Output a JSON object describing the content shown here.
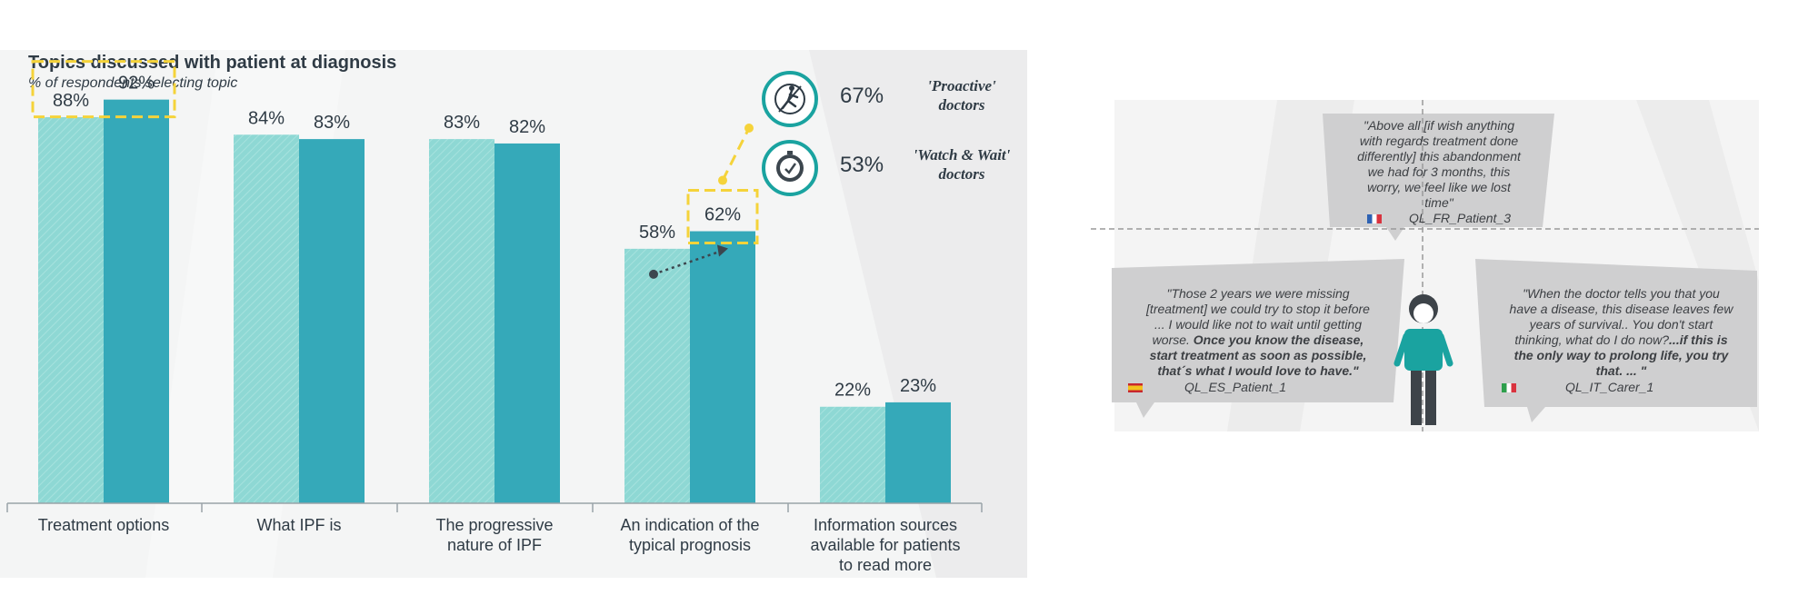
{
  "chart_title": "Topics discussed with patient at diagnosis",
  "chart_subtitle": "% of respondents selecting topic",
  "chart_data": {
    "type": "bar",
    "title": "Topics discussed with patient at diagnosis",
    "subtitle": "% of respondents selecting topic",
    "categories": [
      [
        "Treatment options"
      ],
      [
        "What IPF is"
      ],
      [
        "The progressive",
        "nature of IPF"
      ],
      [
        "An indication of the",
        "typical prognosis"
      ],
      [
        "Information sources",
        "available for patients",
        "to read more"
      ]
    ],
    "series": [
      {
        "color": "#8ed8d4",
        "values": [
          88,
          84,
          83,
          58,
          22
        ]
      },
      {
        "color": "#35a9b9",
        "values": [
          92,
          83,
          82,
          62,
          23
        ]
      }
    ],
    "value_labels": [
      [
        "88%",
        "92%"
      ],
      [
        "84%",
        "83%"
      ],
      [
        "83%",
        "82%"
      ],
      [
        "58%",
        "62%"
      ],
      [
        "22%",
        "23%"
      ]
    ],
    "ylim": [
      0,
      100
    ],
    "grid": false,
    "highlighted": [
      0,
      3
    ]
  },
  "doctor_types": [
    {
      "icon": "doctor-cycling-icon",
      "pct": "67%",
      "label_lines": [
        "'Proactive'",
        "doctors"
      ]
    },
    {
      "icon": "clock-icon",
      "pct": "53%",
      "label_lines": [
        "'Watch & Wait'",
        "doctors"
      ]
    }
  ],
  "quotes": {
    "top": {
      "lines": [
        "\"Above all [if wish anything",
        "with regards treatment done",
        "differently] this abandonment",
        "we had for 3 months, this",
        "worry, we feel like we lost",
        "time\""
      ],
      "source": "QL_FR_Patient_3"
    },
    "left": {
      "lines": [
        {
          "text": "\"Those 2 years we were missing",
          "bold": false
        },
        {
          "text": "[treatment] we could try to stop it before",
          "bold": false
        },
        {
          "text": "... I would like not to wait until getting",
          "bold": false
        },
        {
          "text": "worse. Once you know the disease,",
          "bold_from": 6
        },
        {
          "text": "start treatment as soon as possible,",
          "bold": true
        },
        {
          "text": "that´s what I would love to have.\"",
          "bold": true
        }
      ],
      "source": "QL_ES_Patient_1"
    },
    "right": {
      "lines": [
        {
          "text": "\"When the doctor tells you that you",
          "bold": false
        },
        {
          "text": "have a disease, this disease leaves few",
          "bold": false
        },
        {
          "text": "years of survival.. You don't start",
          "bold": false
        },
        {
          "text": "thinking, what do I do now?...if this is",
          "bold_from": 27
        },
        {
          "text": "the only way to prolong life, you try",
          "bold": true
        },
        {
          "text": "that. ... \"",
          "bold": true
        }
      ],
      "source": "QL_IT_Carer_1"
    }
  },
  "colors": {
    "teal_light": "#8ed8d4",
    "teal_dark": "#35a9b9",
    "highlight": "#f5d33a",
    "icon_ring": "#1aa3a0",
    "bubble": "#cfcfd0",
    "text": "#2f3b45"
  }
}
